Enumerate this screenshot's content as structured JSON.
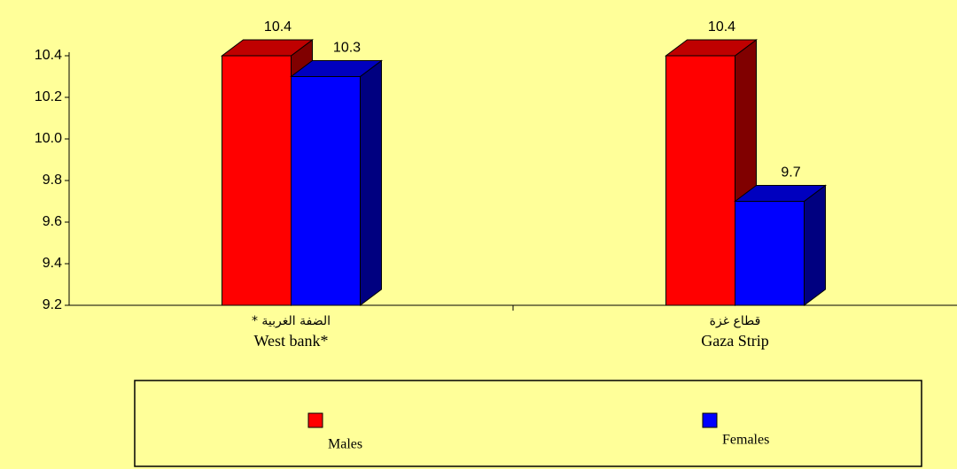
{
  "chart_data": {
    "type": "bar3d",
    "categories": [
      "West bank*",
      "Gaza Strip"
    ],
    "categories_ar": [
      "الضفة الغربية *",
      "قطاع غزة"
    ],
    "series": [
      {
        "name": "Males",
        "color": "#ff0000",
        "values": [
          10.4,
          10.4
        ]
      },
      {
        "name": "Females",
        "color": "#0000ff",
        "values": [
          10.3,
          9.7
        ]
      }
    ],
    "ylim": [
      9.2,
      10.4
    ],
    "yticks": [
      9.2,
      9.4,
      9.6,
      9.8,
      {
        "value": 10,
        "label": "10.0"
      },
      10.2,
      10.4
    ]
  }
}
